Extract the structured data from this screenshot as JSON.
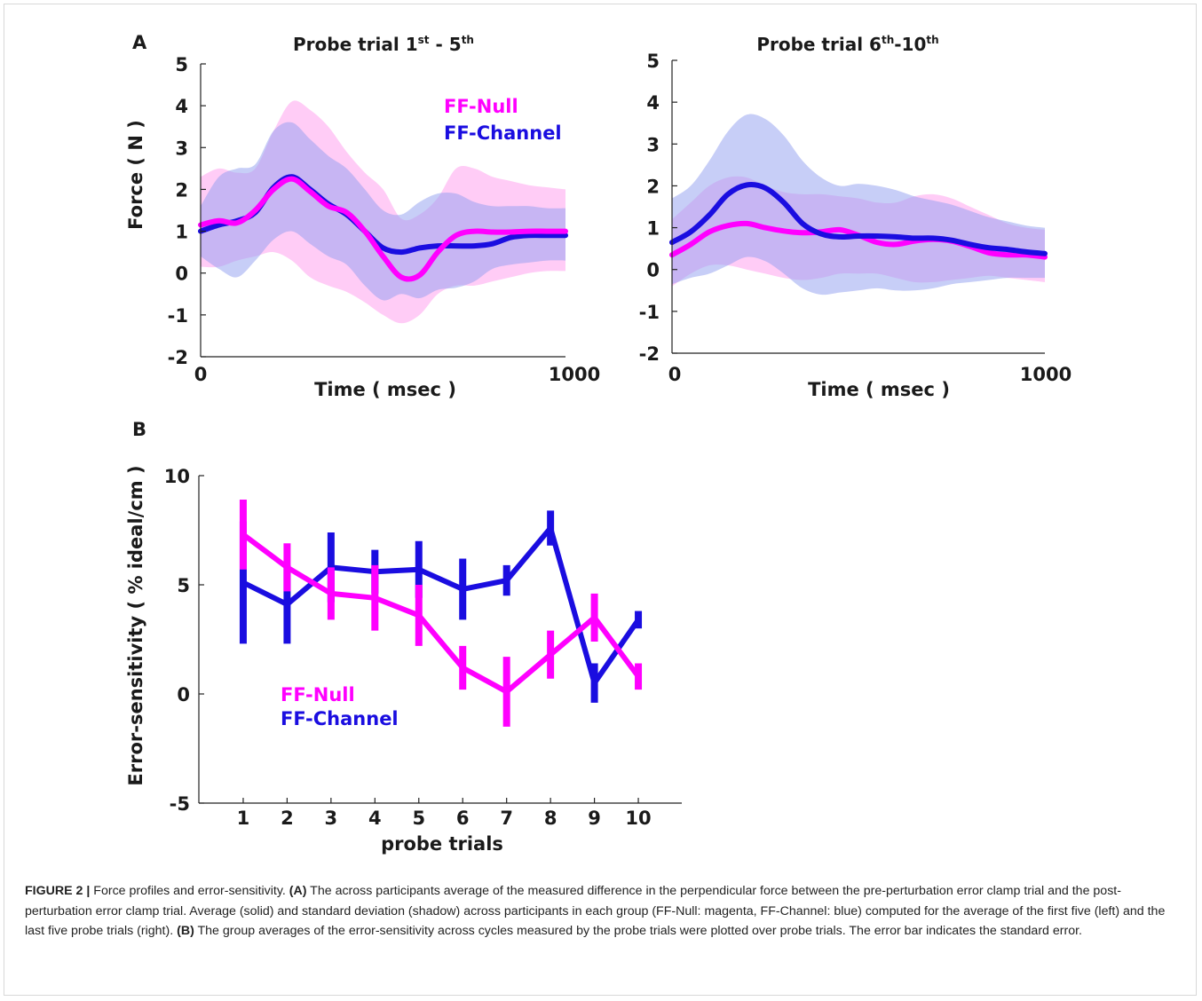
{
  "colors": {
    "null": "#ff00ff",
    "channel": "#1a0de0",
    "null_band": "#ff99ee",
    "channel_band": "#8f9df0"
  },
  "panel_labels": {
    "a": "A",
    "b": "B"
  },
  "caption": {
    "label": "FIGURE 2 |",
    "intro": " Force profiles and error-sensitivity. ",
    "a_label": "(A)",
    "a_text": " The across participants average of the measured difference in the perpendicular force between the pre-perturbation error clamp trial and the post-perturbation error clamp trial. Average (solid) and standard deviation (shadow) across participants in each group (FF-Null: magenta, FF-Channel: blue) computed for the average of the first five (left) and the last five probe trials (right). ",
    "b_label": "(B)",
    "b_text": " The group averages of the error-sensitivity across cycles measured by the probe trials were plotted over probe trials. The error bar indicates the standard error."
  },
  "chart_data": [
    {
      "type": "line",
      "title_main": "Probe trial 1",
      "title_sup1": "st",
      "title_mid": " - 5",
      "title_sup2": "th",
      "xlabel": "Time ( msec )",
      "ylabel": "Force ( N )",
      "xlim": [
        0,
        1000
      ],
      "ylim": [
        -2,
        5
      ],
      "xtick_labels": [
        "0",
        "1000"
      ],
      "ytick_labels": [
        "5",
        "4",
        "3",
        "2",
        "1",
        "0",
        "-1",
        "-2"
      ],
      "legend": [
        "FF-Null",
        "FF-Channel"
      ],
      "series": [
        {
          "name": "FF-Null",
          "x": [
            0,
            50,
            100,
            150,
            200,
            250,
            300,
            350,
            400,
            450,
            500,
            550,
            600,
            650,
            700,
            750,
            800,
            850,
            900,
            950,
            1000
          ],
          "mean": [
            1.15,
            1.25,
            1.2,
            1.5,
            2.0,
            2.25,
            1.95,
            1.6,
            1.45,
            1.0,
            0.4,
            -0.1,
            -0.05,
            0.5,
            0.9,
            1.0,
            0.98,
            0.98,
            1.0,
            1.0,
            1.0
          ],
          "upper": [
            2.3,
            2.5,
            2.4,
            2.5,
            3.4,
            4.1,
            3.9,
            3.5,
            2.9,
            2.4,
            2.0,
            1.3,
            1.4,
            1.8,
            2.5,
            2.5,
            2.3,
            2.2,
            2.1,
            2.05,
            2.0
          ],
          "lower": [
            0.15,
            0.15,
            0.3,
            0.4,
            0.5,
            0.3,
            -0.1,
            -0.3,
            -0.45,
            -0.7,
            -1.0,
            -1.2,
            -1.0,
            -0.5,
            -0.3,
            -0.3,
            -0.2,
            -0.1,
            0.0,
            0.05,
            0.05
          ]
        },
        {
          "name": "FF-Channel",
          "x": [
            0,
            50,
            100,
            150,
            200,
            250,
            300,
            350,
            400,
            450,
            500,
            550,
            600,
            650,
            700,
            750,
            800,
            850,
            900,
            950,
            1000
          ],
          "mean": [
            1.0,
            1.15,
            1.25,
            1.45,
            2.05,
            2.3,
            2.0,
            1.65,
            1.4,
            1.0,
            0.6,
            0.5,
            0.6,
            0.65,
            0.65,
            0.65,
            0.7,
            0.85,
            0.9,
            0.9,
            0.9
          ],
          "upper": [
            1.6,
            2.3,
            2.5,
            2.6,
            3.4,
            3.6,
            3.2,
            2.8,
            2.5,
            2.0,
            1.5,
            1.4,
            1.7,
            1.9,
            1.9,
            1.7,
            1.6,
            1.6,
            1.6,
            1.55,
            1.55
          ],
          "lower": [
            0.4,
            0.1,
            -0.1,
            0.3,
            0.8,
            1.0,
            0.7,
            0.4,
            0.2,
            -0.3,
            -0.65,
            -0.5,
            -0.6,
            -0.4,
            -0.35,
            -0.2,
            0.1,
            0.2,
            0.25,
            0.3,
            0.3
          ]
        }
      ]
    },
    {
      "type": "line",
      "title_main": "Probe trial 6",
      "title_sup1": "th",
      "title_mid": "-10",
      "title_sup2": "th",
      "xlabel": "Time ( msec )",
      "ylabel": "",
      "xlim": [
        0,
        1000
      ],
      "ylim": [
        -2,
        5
      ],
      "xtick_labels": [
        "0",
        "1000"
      ],
      "ytick_labels": [
        "5",
        "4",
        "3",
        "2",
        "1",
        "0",
        "-1",
        "-2"
      ],
      "series": [
        {
          "name": "FF-Null",
          "x": [
            0,
            50,
            100,
            150,
            200,
            250,
            300,
            350,
            400,
            450,
            500,
            550,
            600,
            650,
            700,
            750,
            800,
            850,
            900,
            950,
            1000
          ],
          "mean": [
            0.35,
            0.6,
            0.9,
            1.05,
            1.1,
            1.0,
            0.92,
            0.88,
            0.9,
            0.95,
            0.82,
            0.65,
            0.6,
            0.68,
            0.72,
            0.68,
            0.55,
            0.4,
            0.35,
            0.35,
            0.3
          ],
          "upper": [
            1.2,
            1.6,
            2.0,
            2.2,
            2.2,
            2.0,
            1.85,
            1.8,
            1.8,
            1.75,
            1.7,
            1.6,
            1.6,
            1.75,
            1.8,
            1.7,
            1.5,
            1.3,
            1.1,
            1.0,
            0.95
          ],
          "lower": [
            -0.4,
            -0.1,
            0.1,
            0.1,
            0.0,
            -0.1,
            -0.2,
            -0.25,
            -0.2,
            -0.1,
            -0.1,
            -0.1,
            -0.2,
            -0.3,
            -0.3,
            -0.25,
            -0.2,
            -0.15,
            -0.2,
            -0.25,
            -0.3
          ]
        },
        {
          "name": "FF-Channel",
          "x": [
            0,
            50,
            100,
            150,
            200,
            250,
            300,
            350,
            400,
            450,
            500,
            550,
            600,
            650,
            700,
            750,
            800,
            850,
            900,
            950,
            1000
          ],
          "mean": [
            0.65,
            0.9,
            1.3,
            1.8,
            2.02,
            1.95,
            1.6,
            1.1,
            0.85,
            0.78,
            0.8,
            0.8,
            0.78,
            0.75,
            0.75,
            0.7,
            0.6,
            0.52,
            0.48,
            0.42,
            0.38
          ],
          "upper": [
            1.7,
            2.0,
            2.6,
            3.3,
            3.7,
            3.6,
            3.2,
            2.6,
            2.2,
            2.0,
            2.05,
            2.0,
            1.9,
            1.75,
            1.65,
            1.55,
            1.4,
            1.25,
            1.15,
            1.05,
            1.0
          ],
          "lower": [
            -0.35,
            -0.2,
            -0.1,
            0.1,
            0.3,
            0.2,
            -0.1,
            -0.45,
            -0.6,
            -0.55,
            -0.5,
            -0.45,
            -0.5,
            -0.5,
            -0.45,
            -0.35,
            -0.3,
            -0.25,
            -0.2,
            -0.2,
            -0.2
          ]
        }
      ]
    },
    {
      "type": "line",
      "title": "",
      "xlabel": "probe trials",
      "ylabel": "Error-sensitivity ( % ideal/cm )",
      "xlim": [
        0,
        11
      ],
      "ylim": [
        -5,
        10
      ],
      "categories": [
        "1",
        "2",
        "3",
        "4",
        "5",
        "6",
        "7",
        "8",
        "9",
        "10"
      ],
      "ytick_labels": [
        "10",
        "5",
        "0",
        "-5"
      ],
      "legend": [
        "FF-Null",
        "FF-Channel"
      ],
      "series": [
        {
          "name": "FF-Null",
          "values": [
            7.3,
            5.8,
            4.6,
            4.4,
            3.6,
            1.2,
            0.1,
            1.8,
            3.5,
            0.8
          ],
          "errors": [
            1.6,
            1.1,
            1.2,
            1.5,
            1.4,
            1.0,
            1.6,
            1.1,
            1.1,
            0.6
          ]
        },
        {
          "name": "FF-Channel",
          "values": [
            5.1,
            4.1,
            5.8,
            5.6,
            5.7,
            4.8,
            5.2,
            7.6,
            0.5,
            3.4
          ],
          "errors": [
            2.8,
            1.8,
            1.6,
            1.0,
            1.3,
            1.4,
            0.7,
            0.8,
            0.9,
            0.4
          ]
        }
      ]
    }
  ]
}
